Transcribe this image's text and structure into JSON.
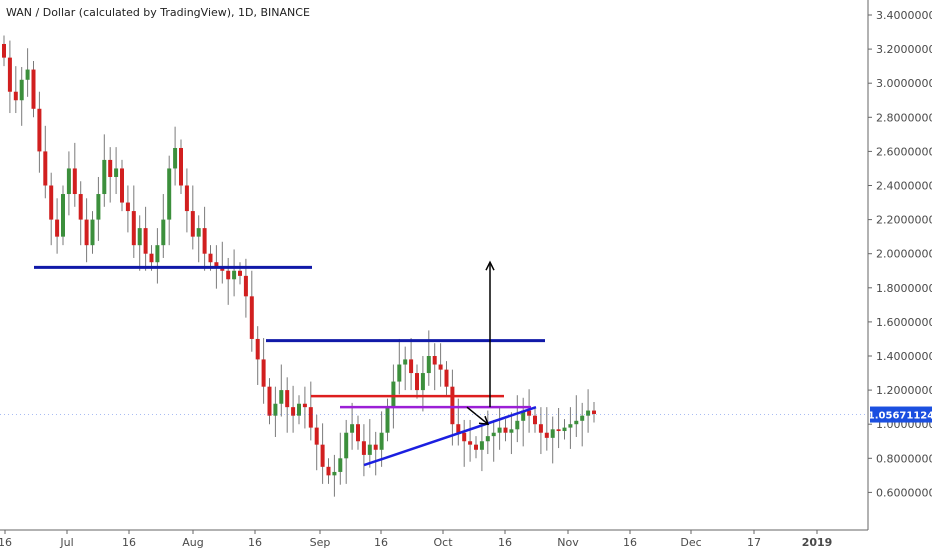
{
  "header": {
    "title": "WAN / Dollar (calculated by TradingView), 1D, BINANCE"
  },
  "colors": {
    "up": "#3c8f3c",
    "down": "#d11f1f",
    "wick": "#7a7a7a",
    "blue_line": "#1019a8",
    "red_line": "#dd1e1e",
    "purple_line": "#9b1fd6",
    "triangle_line": "#1b1fe0",
    "arrow": "#000000",
    "price_tag": "#1b4fe0",
    "axis": "#666666"
  },
  "chart_data": {
    "type": "candlestick",
    "symbol": "WAN / Dollar",
    "interval": "1D",
    "exchange": "BINANCE",
    "ylim": [
      0.5,
      3.45
    ],
    "y_ticks": [
      "3.4000000",
      "3.2000000",
      "3.0000000",
      "2.8000000",
      "2.6000000",
      "2.4000000",
      "2.2000000",
      "2.0000000",
      "1.8000000",
      "1.6000000",
      "1.4000000",
      "1.2000000",
      "1.0000000",
      "0.8000000",
      "0.6000000"
    ],
    "x_ticks": [
      "16",
      "Jul",
      "16",
      "Aug",
      "16",
      "Sep",
      "16",
      "Oct",
      "16",
      "Nov",
      "16",
      "Dec",
      "17",
      "2019"
    ],
    "x_ticks_bold": [
      "2019"
    ],
    "last_price": "1.05671124",
    "last_price_value": 1.0567,
    "closes": [
      3.15,
      2.95,
      2.9,
      3.02,
      3.08,
      2.85,
      2.6,
      2.4,
      2.2,
      2.1,
      2.35,
      2.5,
      2.35,
      2.2,
      2.05,
      2.2,
      2.35,
      2.55,
      2.45,
      2.5,
      2.3,
      2.25,
      2.05,
      2.15,
      2.0,
      1.95,
      2.05,
      2.2,
      2.5,
      2.62,
      2.4,
      2.25,
      2.1,
      2.15,
      2.0,
      1.95,
      1.92,
      1.9,
      1.85,
      1.9,
      1.87,
      1.75,
      1.5,
      1.38,
      1.22,
      1.05,
      1.12,
      1.2,
      1.1,
      1.05,
      1.12,
      1.1,
      0.98,
      0.88,
      0.75,
      0.7,
      0.72,
      0.8,
      0.95,
      1.0,
      0.9,
      0.82,
      0.88,
      0.85,
      0.95,
      1.1,
      1.25,
      1.35,
      1.38,
      1.3,
      1.2,
      1.3,
      1.4,
      1.35,
      1.32,
      1.22,
      1.0,
      0.95,
      0.9,
      0.88,
      0.85,
      0.9,
      0.93,
      0.95,
      0.98,
      0.95,
      0.97,
      1.02,
      1.08,
      1.05,
      1.0,
      0.95,
      0.92,
      0.97,
      0.96,
      0.98,
      1.0,
      1.02,
      1.05,
      1.08,
      1.06
    ],
    "annotations": {
      "support_line_upper": {
        "from_index": 5,
        "to_index": 51,
        "value": 1.92
      },
      "resistance_line": {
        "from_index": 44,
        "to_index": 90,
        "value": 1.49
      },
      "red_line": {
        "from_index": 51,
        "to_index": 82,
        "value": 1.165
      },
      "purple_line": {
        "from_index": 56,
        "to_index": 87,
        "value_start": 1.1,
        "value_end": 1.1
      },
      "triangle_support": {
        "from_index": 60,
        "to_index": 88,
        "value_start": 0.76,
        "value_end": 1.1
      },
      "target_arrow": {
        "index": 81,
        "from_value": 1.1,
        "to_value": 1.95
      },
      "small_arrow": {
        "from_index": 77,
        "from_value": 1.1,
        "to_index": 81,
        "to_value": 1.0
      }
    }
  }
}
